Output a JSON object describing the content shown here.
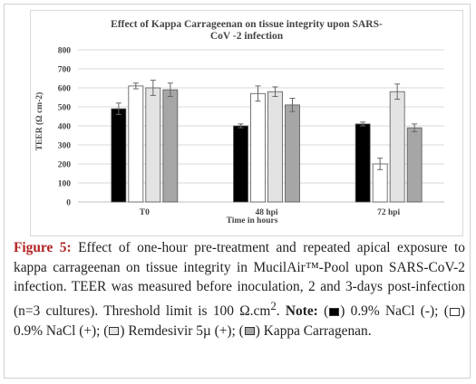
{
  "chart_data": {
    "type": "bar",
    "title": "Effect of Kappa Carrageenan on tissue integrity upon SARS-CoV -2 infection",
    "xlabel": "Time in hours",
    "ylabel": "TEER (Ω cm-2)",
    "ylim": [
      0,
      800
    ],
    "yticks": [
      "0",
      "100",
      "200",
      "300",
      "400",
      "500",
      "600",
      "700",
      "800"
    ],
    "categories": [
      "T0",
      "48 hpi",
      "72 hpi"
    ],
    "grid": true,
    "error_bars": true,
    "series": [
      {
        "color": "#000000",
        "values": [
          490,
          400,
          410
        ],
        "errors": [
          30,
          10,
          10
        ]
      },
      {
        "color": "#ffffff",
        "values": [
          610,
          570,
          200
        ],
        "errors": [
          15,
          40,
          30
        ]
      },
      {
        "color": "#e3e3e3",
        "values": [
          600,
          580,
          580
        ],
        "errors": [
          40,
          25,
          40
        ]
      },
      {
        "color": "#a6a6a6",
        "values": [
          590,
          510,
          390
        ],
        "errors": [
          35,
          35,
          20
        ]
      }
    ]
  },
  "caption": {
    "label": "Figure 5:",
    "text1": " Effect of one-hour pre-treatment and repeated apical exposure to kappa carrageenan on tissue integrity in MucilAir™-Pool upon SARS-CoV-2 infection. TEER was measured before inoculation, 2 and 3-days post-infection (n=3 cultures). Threshold limit is 100 Ω.cm",
    "sup": "2",
    "text2": ". ",
    "note_label": "Note:",
    "open": " (",
    "legend1": ") 0.9% NaCl (-); (",
    "legend2": ") 0.9% NaCl (+); (",
    "legend3": ") Remdesivir 5µ (+); (",
    "legend4": ") Kappa Carragenan."
  }
}
